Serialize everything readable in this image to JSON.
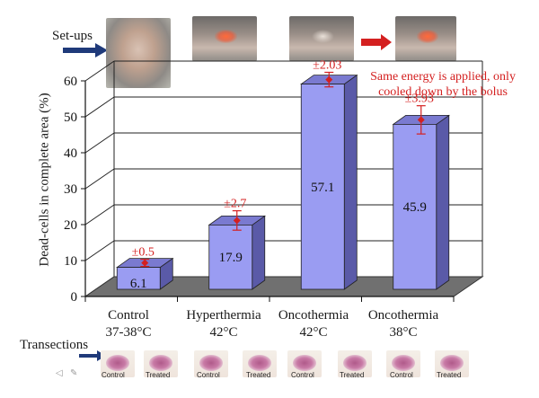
{
  "labels": {
    "setups": "Set-ups",
    "transections": "Transections"
  },
  "annotation": {
    "line1": "Same energy is applied, only",
    "line2": "cooled down by the bolus"
  },
  "slide_labels": [
    "Control",
    "Treated",
    "Control",
    "Treated",
    "Control",
    "Treated",
    "Control",
    "Treated"
  ],
  "colors": {
    "bar_front": "#9a9cf2",
    "bar_side": "#5a5aa8",
    "bar_top": "#7a7ad0",
    "floor": "#707070",
    "error": "#d42020",
    "arrow_blue": "#1f3a7a",
    "arrow_red": "#d42020"
  },
  "icons": [
    "blue-arrow-icon",
    "red-arrow-icon",
    "speaker-icon",
    "pen-icon"
  ],
  "chart_data": {
    "type": "bar",
    "ylabel": "Dead-cells in complete area (%)",
    "xlabel": "",
    "ylim": [
      0,
      60
    ],
    "yticks": [
      0,
      10,
      20,
      30,
      40,
      50,
      60
    ],
    "grid": true,
    "categories": [
      {
        "line1": "Control",
        "line2": "37-38°C"
      },
      {
        "line1": "Hyperthermia",
        "line2": "42°C"
      },
      {
        "line1": "Oncothermia",
        "line2": "42°C"
      },
      {
        "line1": "Oncothermia",
        "line2": "38°C"
      }
    ],
    "values": [
      6.1,
      17.9,
      57.1,
      45.9
    ],
    "value_labels": [
      "6.1",
      "17.9",
      "57.1",
      "45.9"
    ],
    "errors": [
      0.5,
      2.7,
      2.03,
      3.93
    ],
    "error_labels": [
      "±0.5",
      "±2.7",
      "±2.03",
      "±3.93"
    ]
  }
}
